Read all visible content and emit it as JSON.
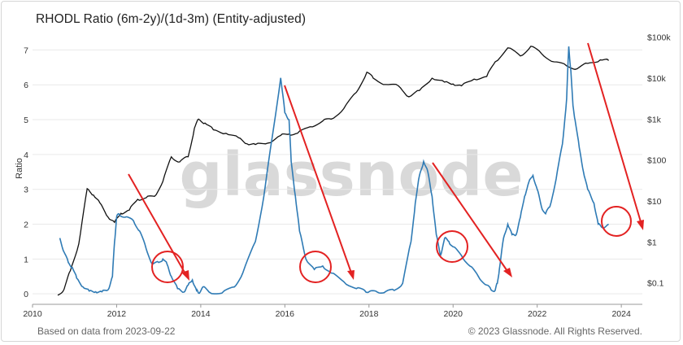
{
  "header": {
    "title": "RHODL Ratio (6m-2y)/(1d-3m) (Entity-adjusted)"
  },
  "footer": {
    "source": "Based on data from 2023-09-22",
    "copyright": "© 2023 Glassnode. All Rights Reserved."
  },
  "watermark": "glassnode",
  "colors": {
    "ratio": "#2f7bb5",
    "price": "#111111",
    "arrows": "#e32222",
    "grid": "#e9e9e9"
  },
  "chart_data": {
    "type": "line",
    "title": "RHODL Ratio (6m-2y)/(1d-3m) (Entity-adjusted)",
    "ylabel": "Ratio",
    "xlim": [
      2010,
      2024.5
    ],
    "ylim": [
      -0.3,
      7.5
    ],
    "x_ticks": [
      "2010",
      "2012",
      "2014",
      "2016",
      "2018",
      "2020",
      "2022",
      "2024"
    ],
    "y_ticks": [
      "0",
      "1",
      "2",
      "3",
      "4",
      "5",
      "6",
      "7"
    ],
    "y2_ticks": [
      "$0.1",
      "$1",
      "$10",
      "$100",
      "$1k",
      "$10k",
      "$100k"
    ],
    "y2_scale": "log",
    "y2lim": [
      0.03,
      130000
    ],
    "series": [
      {
        "axis": "left",
        "x": [
          2010.65,
          2010.75,
          2010.85,
          2010.95,
          2011.05,
          2011.2,
          2011.35,
          2011.5,
          2011.65,
          2011.8,
          2011.9,
          2011.95,
          2012.0,
          2012.05,
          2012.2,
          2012.4,
          2012.55,
          2012.7,
          2012.85,
          2013.0,
          2013.1,
          2013.2,
          2013.3,
          2013.45,
          2013.6,
          2013.7,
          2013.8,
          2013.9,
          2013.95,
          2014.05,
          2014.2,
          2014.5,
          2014.8,
          2015.0,
          2015.3,
          2015.5,
          2015.7,
          2015.9,
          2016.0,
          2016.1,
          2016.15,
          2016.25,
          2016.35,
          2016.5,
          2016.7,
          2016.9,
          2017.1,
          2017.4,
          2017.7,
          2017.9,
          2018.0,
          2018.2,
          2018.4,
          2018.6,
          2018.8,
          2019.0,
          2019.1,
          2019.2,
          2019.3,
          2019.4,
          2019.5,
          2019.6,
          2019.7,
          2019.8,
          2019.9,
          2020.0,
          2020.2,
          2020.4,
          2020.6,
          2020.8,
          2020.9,
          2021.0,
          2021.05,
          2021.1,
          2021.2,
          2021.3,
          2021.4,
          2021.5,
          2021.6,
          2021.7,
          2021.8,
          2021.9,
          2022.0,
          2022.1,
          2022.2,
          2022.3,
          2022.45,
          2022.6,
          2022.7,
          2022.75,
          2022.8,
          2022.85,
          2022.9,
          2023.0,
          2023.1,
          2023.2,
          2023.35,
          2023.45,
          2023.55,
          2023.7
        ],
        "values": [
          1.6,
          1.2,
          0.9,
          0.75,
          0.45,
          0.2,
          0.08,
          0.06,
          0.06,
          0.12,
          0.5,
          1.5,
          2.2,
          2.3,
          2.2,
          2.1,
          1.8,
          1.3,
          0.85,
          0.9,
          1.0,
          0.85,
          0.5,
          0.15,
          0.05,
          0.25,
          0.4,
          0.1,
          0.02,
          0.2,
          0.05,
          0.02,
          0.2,
          0.6,
          1.5,
          2.8,
          4.5,
          6.2,
          5.2,
          5.0,
          3.8,
          2.8,
          1.8,
          1.0,
          0.7,
          0.8,
          0.6,
          0.35,
          0.15,
          0.1,
          0.06,
          0.05,
          0.07,
          0.1,
          0.3,
          1.5,
          2.6,
          3.4,
          3.8,
          3.5,
          2.8,
          1.7,
          1.1,
          1.6,
          1.5,
          1.35,
          1.1,
          0.8,
          0.5,
          0.25,
          0.12,
          0.1,
          0.3,
          0.7,
          1.6,
          2.0,
          1.7,
          1.7,
          2.2,
          2.8,
          3.2,
          3.4,
          3.0,
          2.5,
          2.3,
          2.5,
          3.3,
          4.3,
          5.6,
          7.1,
          6.4,
          5.4,
          5.0,
          4.2,
          3.5,
          3.0,
          2.6,
          2.0,
          1.9,
          2.0
        ]
      },
      {
        "axis": "right",
        "x": [
          2010.6,
          2010.75,
          2010.9,
          2011.1,
          2011.3,
          2011.45,
          2011.6,
          2011.8,
          2011.95,
          2012.1,
          2012.3,
          2012.5,
          2012.7,
          2012.9,
          2013.1,
          2013.3,
          2013.5,
          2013.7,
          2013.85,
          2013.95,
          2014.1,
          2014.3,
          2014.6,
          2014.9,
          2015.1,
          2015.3,
          2015.6,
          2015.9,
          2016.1,
          2016.3,
          2016.6,
          2016.9,
          2017.1,
          2017.4,
          2017.7,
          2017.95,
          2018.1,
          2018.4,
          2018.7,
          2018.95,
          2019.2,
          2019.5,
          2019.8,
          2020.0,
          2020.2,
          2020.5,
          2020.8,
          2021.0,
          2021.3,
          2021.6,
          2021.85,
          2022.1,
          2022.4,
          2022.7,
          2022.95,
          2023.2,
          2023.5,
          2023.7
        ],
        "values": [
          0.05,
          0.07,
          0.2,
          0.9,
          20,
          14,
          9,
          4,
          3,
          5,
          6,
          11,
          12,
          13,
          30,
          120,
          90,
          120,
          600,
          1000,
          800,
          550,
          450,
          350,
          250,
          240,
          260,
          400,
          430,
          450,
          650,
          900,
          1000,
          1800,
          4500,
          14000,
          10000,
          7000,
          6500,
          3500,
          5000,
          10000,
          8000,
          7200,
          6500,
          9500,
          11000,
          25000,
          55000,
          35000,
          60000,
          40000,
          25000,
          20000,
          17000,
          23000,
          28000,
          27000
        ]
      }
    ]
  }
}
